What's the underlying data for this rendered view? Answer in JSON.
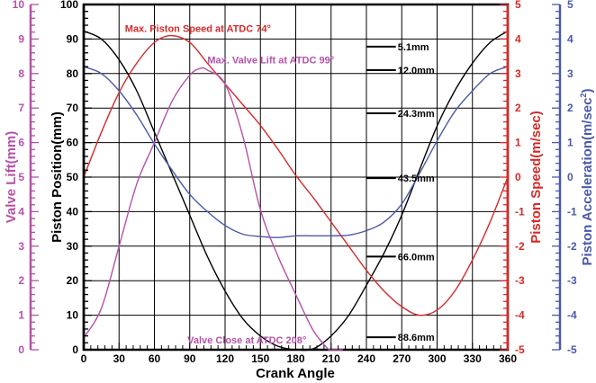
{
  "chart_data": {
    "type": "line",
    "xlabel": "Crank Angle",
    "xlim": [
      0,
      360
    ],
    "xticks": [
      0,
      30,
      60,
      90,
      120,
      150,
      180,
      210,
      240,
      270,
      300,
      330,
      360
    ],
    "grid": true,
    "axes": {
      "valve": {
        "label": "Valve Lift(mm)",
        "range": [
          0,
          10
        ],
        "ticks": [
          0,
          1,
          2,
          3,
          4,
          5,
          6,
          7,
          8,
          9,
          10
        ],
        "color": "#b452a8",
        "side": "far-left"
      },
      "position": {
        "label": "Piston Position(mm)",
        "range": [
          0,
          100
        ],
        "ticks": [
          0,
          10,
          20,
          30,
          40,
          50,
          60,
          70,
          80,
          90,
          100
        ],
        "color": "#000000",
        "side": "left"
      },
      "speed": {
        "label": "Piston Speed(m/sec)",
        "range": [
          -5,
          5
        ],
        "ticks": [
          -5,
          -4,
          -3,
          -2,
          -1,
          0,
          1,
          2,
          3,
          4,
          5
        ],
        "color": "#d42a2a",
        "side": "right"
      },
      "accel": {
        "label": "Piston Acceleration(m/sec",
        "label_sup": "2",
        "label_end": ")",
        "range": [
          -5,
          5
        ],
        "ticks": [
          -5,
          -4,
          -3,
          -2,
          -1,
          0,
          1,
          2,
          3,
          4,
          5
        ],
        "color": "#4a5aa8",
        "side": "far-right"
      }
    },
    "series": [
      {
        "axis": "position",
        "color": "#000000",
        "x": [
          0,
          15,
          30,
          45,
          60,
          75,
          90,
          105,
          120,
          135,
          150,
          165,
          180,
          195,
          210,
          225,
          240,
          255,
          270,
          285,
          300,
          315,
          330,
          345,
          360
        ],
        "y": [
          92.3,
          90,
          84,
          75,
          63,
          51,
          39,
          27,
          17,
          9,
          4,
          1,
          0,
          0.3,
          4,
          10,
          18.7,
          28,
          39,
          52,
          64.8,
          75,
          83,
          89,
          92.3
        ]
      },
      {
        "axis": "speed",
        "color": "#d42a2a",
        "x": [
          0,
          15,
          30,
          45,
          60,
          74,
          90,
          105,
          120,
          135,
          150,
          165,
          180,
          195,
          210,
          225,
          240,
          255,
          270,
          285,
          300,
          315,
          330,
          345,
          360
        ],
        "y": [
          0,
          1.3,
          2.45,
          3.3,
          3.9,
          4.1,
          3.9,
          3.3,
          2.7,
          2.1,
          1.5,
          0.8,
          0.05,
          -0.6,
          -1.3,
          -2.0,
          -2.7,
          -3.3,
          -3.75,
          -4.0,
          -3.85,
          -3.3,
          -2.4,
          -1.3,
          0
        ]
      },
      {
        "axis": "accel",
        "color": "#4a5aa8",
        "x": [
          0,
          15,
          30,
          45,
          60,
          75,
          90,
          105,
          120,
          135,
          150,
          165,
          180,
          195,
          210,
          225,
          240,
          255,
          270,
          285,
          300,
          315,
          330,
          345,
          360
        ],
        "y": [
          3.2,
          3.0,
          2.5,
          1.8,
          0.96,
          0.2,
          -0.5,
          -1.0,
          -1.4,
          -1.65,
          -1.72,
          -1.75,
          -1.7,
          -1.7,
          -1.7,
          -1.68,
          -1.55,
          -1.3,
          -0.78,
          0.1,
          1.05,
          1.9,
          2.5,
          3.0,
          3.2
        ]
      },
      {
        "axis": "valve",
        "color": "#b452a8",
        "x": [
          0,
          15,
          30,
          45,
          60,
          75,
          90,
          99,
          105,
          120,
          135,
          150,
          165,
          180,
          195,
          208
        ],
        "y": [
          0.35,
          1.2,
          3.0,
          4.8,
          6.0,
          7.2,
          7.95,
          8.15,
          8.1,
          7.7,
          6.2,
          4.05,
          2.7,
          1.6,
          0.55,
          0
        ]
      }
    ],
    "annotations": [
      {
        "text": "Max. Piston Speed at ATDC 74°",
        "color": "#d42a2a",
        "x": 35,
        "y": 92
      },
      {
        "text": "Max. Valve Lift at ATDC 99°",
        "color": "#b452a8",
        "x": 105,
        "y": 83
      },
      {
        "text": "Valve Close at ATDC 208°",
        "color": "#b452a8",
        "x": 88,
        "y": 1.8
      }
    ],
    "markers": [
      {
        "label": "5.1mm",
        "y": 87.8
      },
      {
        "label": "12.0mm",
        "y": 81
      },
      {
        "label": "24.3mm",
        "y": 68.5
      },
      {
        "label": "43.5mm",
        "y": 49.7
      },
      {
        "label": "66.0mm",
        "y": 27
      },
      {
        "label": "88.6mm",
        "y": 3.6
      }
    ],
    "marker_x_range": [
      240,
      265
    ]
  }
}
